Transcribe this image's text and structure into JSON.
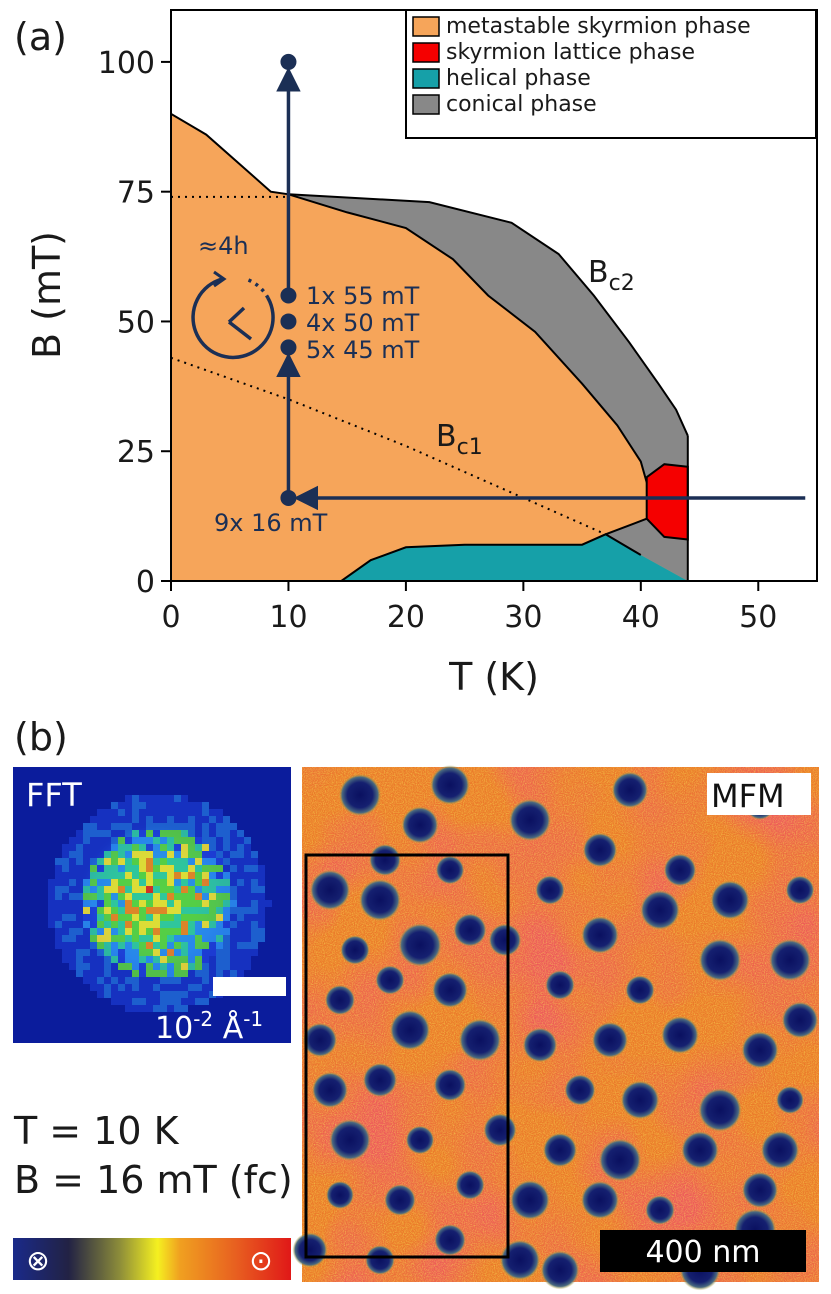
{
  "panel_a": {
    "label": "(a)",
    "legend": [
      {
        "text": "metastable skyrmion phase",
        "color": "#f6a55a"
      },
      {
        "text": "skyrmion lattice phase",
        "color": "#f50000"
      },
      {
        "text": "helical phase",
        "color": "#16a0a8"
      },
      {
        "text": "conical phase",
        "color": "#888888"
      }
    ],
    "annotations": {
      "bc2": "B",
      "bc2_sub": "c2",
      "bc1": "B",
      "bc1_sub": "c1",
      "time": "≈4h",
      "step1": "1x 55 mT",
      "step2": "4x 50 mT",
      "step3": "5x 45 mT",
      "step0": "9x 16 mT"
    }
  },
  "panel_b": {
    "label": "(b)",
    "fft_label": "FFT",
    "fft_scale": "10",
    "fft_scale_exp1": "-2",
    "fft_scale_unit": "Å",
    "fft_scale_exp2": "-1",
    "mfm_label": "MFM",
    "mfm_scale": "400 nm",
    "cond_T": "T = 10 K",
    "cond_B": "B = 16 mT (fc)",
    "colorbar_left": "⊗",
    "colorbar_right": "⊙"
  },
  "chart_data": {
    "type": "area",
    "xlabel": "T (K)",
    "ylabel": "B (mT)",
    "xlim": [
      0,
      55
    ],
    "ylim": [
      0,
      110
    ],
    "xticks": [
      0,
      10,
      20,
      30,
      40,
      50
    ],
    "yticks": [
      0,
      25,
      50,
      75,
      100
    ],
    "grid": false,
    "legend_position": "top-right",
    "regions": [
      {
        "name": "metastable skyrmion phase",
        "color": "#f6a55a"
      },
      {
        "name": "skyrmion lattice phase",
        "color": "#f50000"
      },
      {
        "name": "helical phase",
        "color": "#16a0a8"
      },
      {
        "name": "conical phase",
        "color": "#888888"
      }
    ],
    "boundaries": {
      "metastable_outer": [
        [
          0,
          90
        ],
        [
          3,
          86
        ],
        [
          6,
          80
        ],
        [
          8.5,
          75
        ],
        [
          10,
          74.5
        ],
        [
          15,
          71
        ],
        [
          20,
          68
        ],
        [
          24,
          62
        ],
        [
          27,
          55
        ],
        [
          31,
          48
        ],
        [
          35,
          38
        ],
        [
          38,
          30
        ],
        [
          40,
          23
        ],
        [
          40.5,
          19
        ]
      ],
      "bc2": [
        [
          10,
          74.5
        ],
        [
          22,
          73
        ],
        [
          29,
          69
        ],
        [
          33,
          63
        ],
        [
          36,
          55
        ],
        [
          39,
          46
        ],
        [
          41.5,
          38
        ],
        [
          43,
          33
        ],
        [
          44,
          28
        ]
      ],
      "skyrmion_lattice": [
        [
          40.5,
          20
        ],
        [
          42,
          22.5
        ],
        [
          44,
          22
        ],
        [
          44,
          8
        ],
        [
          42,
          8.5
        ],
        [
          40.5,
          12
        ]
      ],
      "helical": [
        [
          14.5,
          0
        ],
        [
          17,
          4
        ],
        [
          20,
          6.5
        ],
        [
          25,
          7
        ],
        [
          35,
          7
        ],
        [
          37,
          9
        ],
        [
          40,
          5
        ],
        [
          44,
          0
        ]
      ],
      "bc1_dotted": [
        [
          0,
          43
        ],
        [
          10,
          35
        ],
        [
          20,
          26
        ],
        [
          30,
          16
        ],
        [
          37,
          9
        ]
      ],
      "dotted_75": [
        [
          0,
          74
        ],
        [
          10,
          74
        ]
      ]
    },
    "points": [
      {
        "x": 10,
        "y": 100
      },
      {
        "x": 10,
        "y": 55,
        "label": "1x 55 mT"
      },
      {
        "x": 10,
        "y": 50,
        "label": "4x 50 mT"
      },
      {
        "x": 10,
        "y": 45,
        "label": "5x 45 mT"
      },
      {
        "x": 10,
        "y": 16,
        "label": "9x 16 mT"
      }
    ],
    "paths": [
      {
        "from": [
          54,
          16
        ],
        "to": [
          10,
          16
        ]
      },
      {
        "from": [
          10,
          16
        ],
        "to": [
          10,
          45
        ]
      },
      {
        "from": [
          10,
          55
        ],
        "to": [
          10,
          100
        ]
      }
    ]
  }
}
